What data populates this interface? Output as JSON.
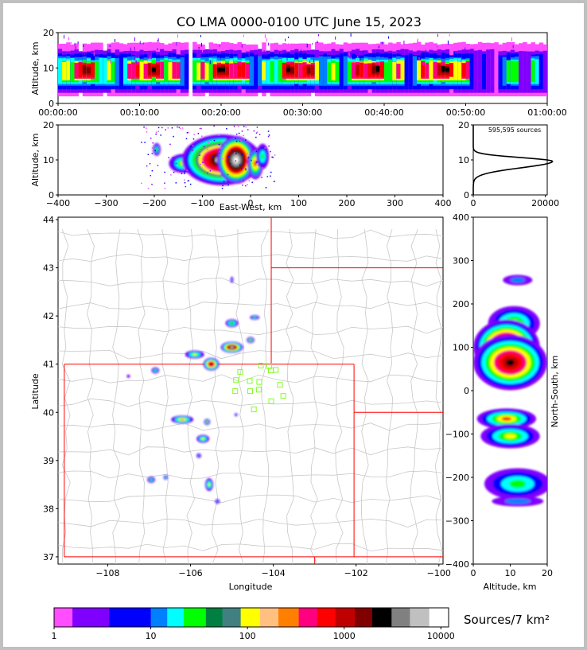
{
  "title": "CO LMA 0000-0100 UTC June 15, 2023",
  "colors": {
    "colorbar": [
      "#ff4dff",
      "#8000ff",
      "#0000ff",
      "#0080ff",
      "#00ffff",
      "#00ff00",
      "#008040",
      "#408080",
      "#ffff00",
      "#ffc080",
      "#ff8000",
      "#ff0080",
      "#ff0000",
      "#c00000",
      "#800000",
      "#000000",
      "#808080",
      "#c0c0c0",
      "#ffffff"
    ],
    "state_border": "#ff0000",
    "county_border": "#c8c8c8",
    "station_marker": "#80ff20"
  },
  "colorbar_label": "Sources/7 km²",
  "colorbar_ticks": [
    "1",
    "10",
    "100",
    "1000",
    "10000"
  ],
  "chart_data": [
    {
      "id": "time-height",
      "type": "heatmap",
      "xlabel": "",
      "ylabel": "Altitude, km",
      "xlim_minutes": [
        0,
        60
      ],
      "ylim": [
        0,
        20
      ],
      "x_ticks": [
        "00:00:00",
        "00:10:00",
        "00:20:00",
        "00:30:00",
        "00:40:00",
        "00:50:00",
        "01:00:00"
      ],
      "y_ticks": [
        "0",
        "10",
        "20"
      ]
    },
    {
      "id": "ew-height",
      "type": "heatmap",
      "xlabel": "East-West, km",
      "ylabel": "Altitude, km",
      "xlim": [
        -400,
        400
      ],
      "ylim": [
        0,
        20
      ],
      "x_ticks": [
        "−400",
        "−300",
        "−200",
        "−100",
        "0",
        "100",
        "200",
        "300",
        "400"
      ],
      "y_ticks": [
        "0",
        "10",
        "20"
      ]
    },
    {
      "id": "altitude-histogram",
      "type": "line",
      "annotation": "595,595 sources",
      "xlim": [
        0,
        20000
      ],
      "ylim": [
        0,
        20
      ],
      "x_ticks": [
        "0",
        "20000"
      ],
      "y_ticks": [
        "0",
        "10",
        "20"
      ]
    },
    {
      "id": "plan-view",
      "type": "heatmap",
      "xlabel": "Longitude",
      "ylabel": "Latitude",
      "xlim": [
        -109.2,
        -99.9
      ],
      "ylim": [
        36.85,
        44.05
      ],
      "x_ticks": [
        "−108",
        "−106",
        "−104",
        "−102",
        "−100"
      ],
      "y_ticks": [
        "37",
        "38",
        "39",
        "40",
        "41",
        "42",
        "43",
        "44"
      ],
      "stations": [
        [
          -104.9,
          40.67
        ],
        [
          -104.8,
          40.84
        ],
        [
          -104.57,
          40.65
        ],
        [
          -104.34,
          40.63
        ],
        [
          -104.06,
          40.87
        ],
        [
          -103.94,
          40.88
        ],
        [
          -104.1,
          40.96
        ],
        [
          -104.3,
          40.97
        ],
        [
          -103.84,
          40.57
        ],
        [
          -103.76,
          40.34
        ],
        [
          -104.47,
          40.06
        ],
        [
          -104.05,
          40.23
        ],
        [
          -104.35,
          40.47
        ],
        [
          -104.56,
          40.44
        ],
        [
          -104.92,
          40.44
        ]
      ]
    },
    {
      "id": "ns-height",
      "type": "heatmap",
      "xlabel": "Altitude, km",
      "ylabel": "North-South, km",
      "xlim": [
        0,
        20
      ],
      "ylim": [
        -400,
        400
      ],
      "x_ticks": [
        "0",
        "10",
        "20"
      ],
      "y_ticks": [
        "400",
        "300",
        "200",
        "100",
        "0",
        "−100",
        "−200",
        "−300",
        "−400"
      ]
    }
  ]
}
